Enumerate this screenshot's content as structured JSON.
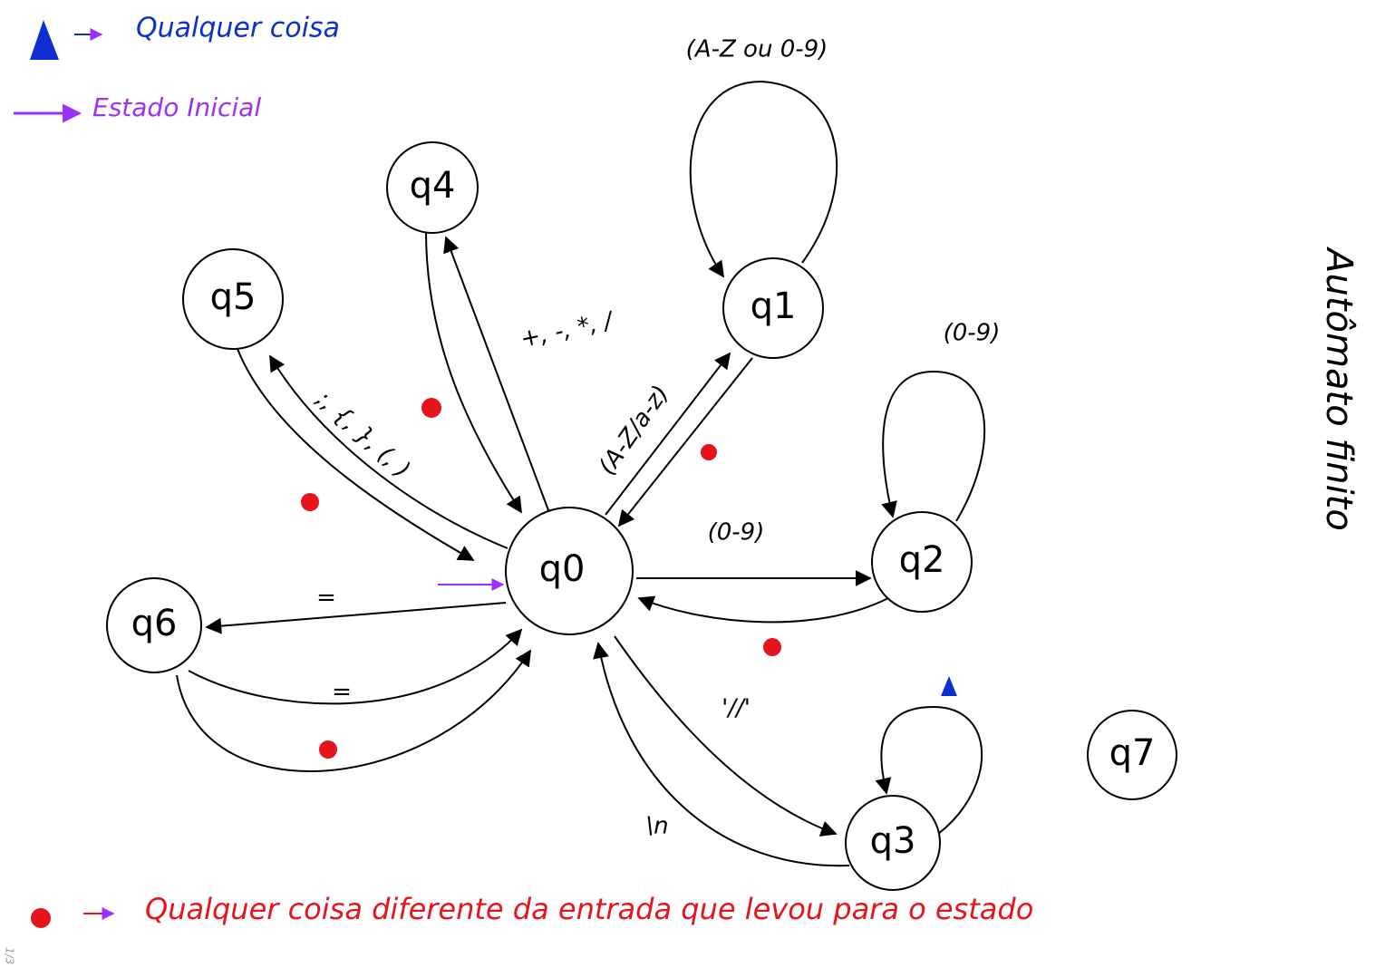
{
  "legend": {
    "any_symbol": "Qualquer coisa",
    "initial_state": "Estado Inicial",
    "other_input": "Qualquer coisa diferente da entrada que levou para o estado"
  },
  "title": "Autômato finito",
  "nodes": [
    "q0",
    "q1",
    "q2",
    "q3",
    "q4",
    "q5",
    "q6",
    "q7"
  ],
  "edges": [
    "(A-Z ou 0-9)",
    "+, -, *, /",
    ";, {, }, (, )",
    "(A-Z/a-z)",
    "(0-9)",
    "(0-9)",
    "=",
    "=",
    "'//'",
    "\\n"
  ],
  "page_indicator": "1/3"
}
